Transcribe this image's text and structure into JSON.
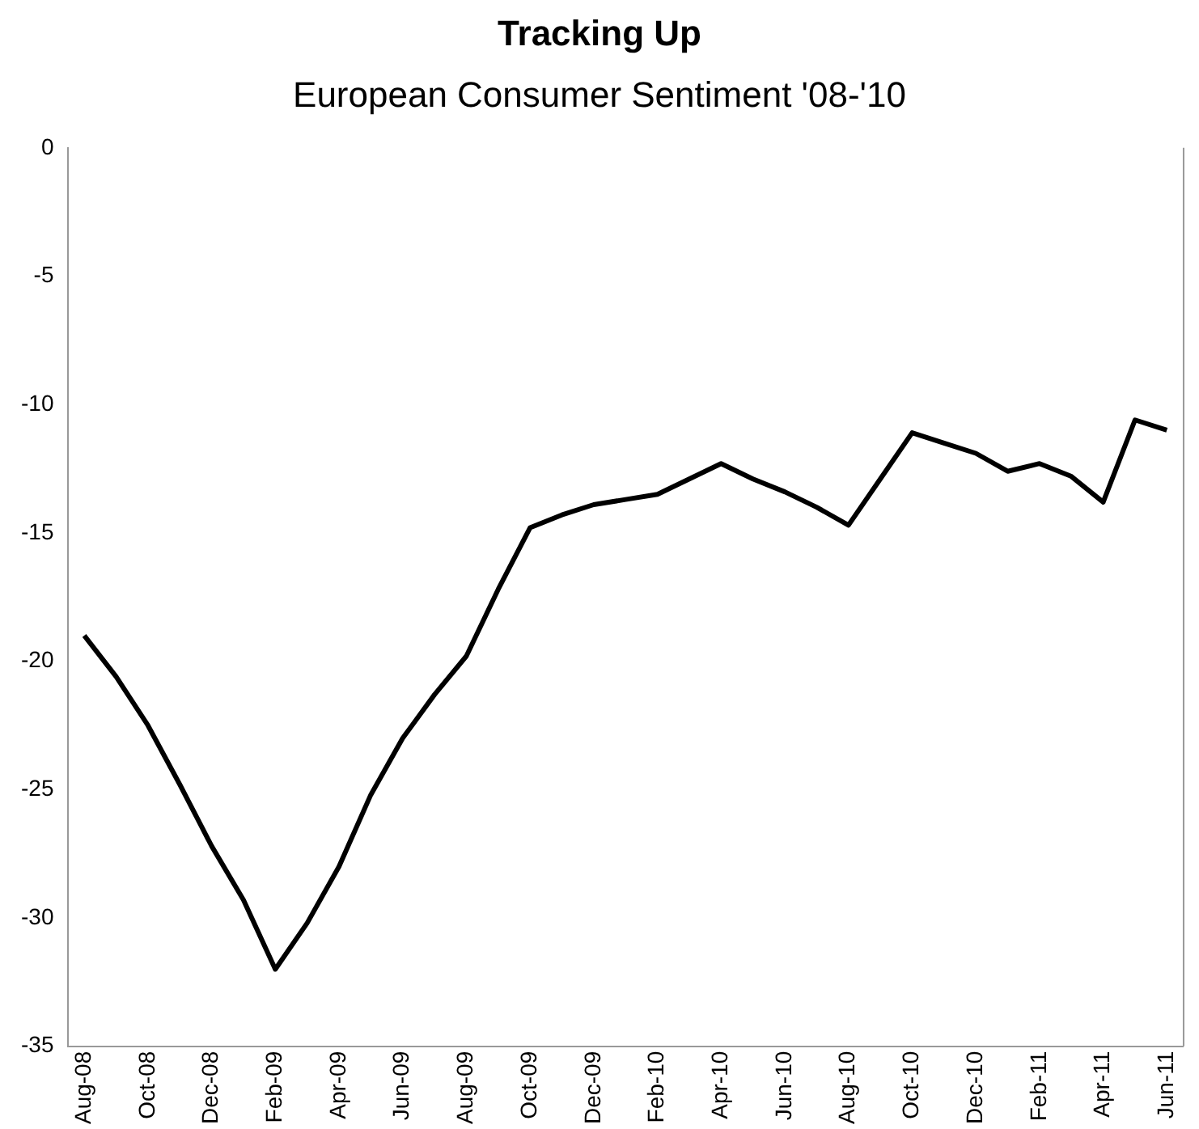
{
  "chart_data": {
    "type": "line",
    "title": "Tracking Up",
    "subtitle": "European Consumer Sentiment '08-'10",
    "categories": [
      "Aug-08",
      null,
      "Oct-08",
      null,
      "Dec-08",
      null,
      "Feb-09",
      null,
      "Apr-09",
      null,
      "Jun-09",
      null,
      "Aug-09",
      null,
      "Oct-09",
      null,
      "Dec-09",
      null,
      "Feb-10",
      null,
      "Apr-10",
      null,
      "Jun-10",
      null,
      "Aug-10",
      null,
      "Oct-10",
      null,
      "Dec-10",
      null,
      "Feb-11",
      null,
      "Apr-11",
      null,
      "Jun-11"
    ],
    "series": [
      {
        "color": "#000000",
        "values": [
          -19,
          -20.6,
          -22.5,
          -24.8,
          -27.2,
          -29.3,
          -32,
          -30.2,
          -28,
          -25.2,
          -23,
          -21.3,
          -19.8,
          -17.2,
          -14.8,
          -14.3,
          -13.9,
          -13.7,
          -13.5,
          -12.9,
          -12.3,
          -12.9,
          -13.4,
          -14,
          -14.7,
          -12.9,
          -11.1,
          -11.5,
          -11.9,
          -12.6,
          -12.3,
          -12.8,
          -13.8,
          -10.6,
          -11
        ]
      }
    ],
    "ylim": [
      -35,
      0
    ],
    "yticks": [
      -35,
      -30,
      -25,
      -20,
      -15,
      -10,
      -5,
      0
    ],
    "grid": false,
    "legend": false,
    "marker": "none",
    "line_style": "solid"
  }
}
